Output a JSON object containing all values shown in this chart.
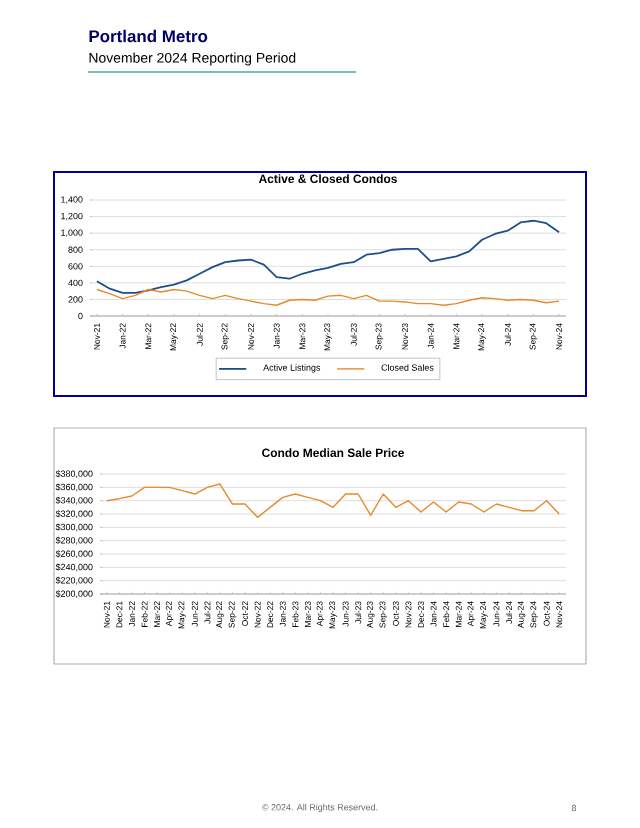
{
  "chart_data": [
    {
      "type": "other",
      "title": "Portland Metro",
      "subtitle": "November 2024 Reporting Period",
      "annotations": [
        "© 2024. All Rights Reserved.",
        "8"
      ]
    },
    {
      "type": "line",
      "title": "Active & Closed Condos",
      "categories": [
        "Nov-21",
        null,
        "Jan-22",
        null,
        "Mar-22",
        null,
        "May-22",
        null,
        "Jul-22",
        null,
        "Sep-22",
        null,
        "Nov-22",
        null,
        "Jan-23",
        null,
        "Mar-23",
        null,
        "May-23",
        null,
        "Jul-23",
        null,
        "Sep-23",
        null,
        "Nov-23",
        null,
        "Jan-24",
        null,
        "Mar-24",
        null,
        "May-24",
        null,
        "Jul-24",
        null,
        "Sep-24",
        null,
        "Nov-24"
      ],
      "series": [
        {
          "name": "Active Listings",
          "color": "#1f4e8c",
          "values": [
            420,
            330,
            280,
            280,
            310,
            350,
            380,
            430,
            510,
            590,
            650,
            670,
            680,
            620,
            470,
            450,
            510,
            550,
            580,
            630,
            650,
            740,
            760,
            800,
            810,
            810,
            660,
            690,
            720,
            780,
            920,
            990,
            1030,
            1130,
            1150,
            1120,
            1010
          ]
        },
        {
          "name": "Closed Sales",
          "color": "#e8892c",
          "values": [
            320,
            270,
            210,
            250,
            320,
            290,
            320,
            300,
            250,
            210,
            250,
            210,
            180,
            150,
            130,
            190,
            200,
            190,
            240,
            250,
            210,
            250,
            180,
            180,
            170,
            150,
            150,
            130,
            150,
            190,
            220,
            210,
            190,
            200,
            190,
            160,
            180
          ]
        }
      ],
      "ylim": [
        0,
        1400
      ],
      "yticks": [
        {
          "value": 0,
          "label": "0"
        },
        {
          "value": 200,
          "label": "200"
        },
        {
          "value": 400,
          "label": "400"
        },
        {
          "value": 600,
          "label": "600"
        },
        {
          "value": 800,
          "label": "800"
        },
        {
          "value": 1000,
          "label": "1,000"
        },
        {
          "value": 1200,
          "label": "1,200"
        },
        {
          "value": 1400,
          "label": "1,400"
        }
      ],
      "grid": "y",
      "legend": "bottom",
      "marker": "none",
      "line_style": "solid"
    },
    {
      "type": "line",
      "title": "Condo Median Sale Price",
      "categories": [
        "Nov-21",
        "Dec-21",
        "Jan-22",
        "Feb-22",
        "Mar-22",
        "Apr-22",
        "May-22",
        "Jun-22",
        "Jul-22",
        "Aug-22",
        "Sep-22",
        "Oct-22",
        "Nov-22",
        "Dec-22",
        "Jan-23",
        "Feb-23",
        "Mar-23",
        "Apr-23",
        "May-23",
        "Jun-23",
        "Jul-23",
        "Aug-23",
        "Sep-23",
        "Oct-23",
        "Nov-23",
        "Dec-23",
        "Jan-24",
        "Feb-24",
        "Mar-24",
        "Apr-24",
        "May-24",
        "Jun-24",
        "Jul-24",
        "Aug-24",
        "Sep-24",
        "Oct-24",
        "Nov-24"
      ],
      "values": [
        340000,
        343000,
        347000,
        360000,
        360000,
        360000,
        355000,
        350000,
        360000,
        365000,
        335000,
        335000,
        315000,
        330000,
        345000,
        350000,
        345000,
        340000,
        330000,
        350000,
        350000,
        318000,
        350000,
        330000,
        340000,
        323000,
        338000,
        323000,
        338000,
        335000,
        323000,
        335000,
        330000,
        325000,
        325000,
        340000,
        320000
      ],
      "color": "#e8892c",
      "ylim": [
        200000,
        380000
      ],
      "yticks": [
        {
          "value": 200000,
          "label": "$200,000"
        },
        {
          "value": 220000,
          "label": "$220,000"
        },
        {
          "value": 240000,
          "label": "$240,000"
        },
        {
          "value": 260000,
          "label": "$260,000"
        },
        {
          "value": 280000,
          "label": "$280,000"
        },
        {
          "value": 300000,
          "label": "$300,000"
        },
        {
          "value": 320000,
          "label": "$320,000"
        },
        {
          "value": 340000,
          "label": "$340,000"
        },
        {
          "value": 360000,
          "label": "$360,000"
        },
        {
          "value": 380000,
          "label": "$380,000"
        }
      ],
      "grid": "y",
      "marker": "none",
      "line_style": "solid"
    }
  ]
}
